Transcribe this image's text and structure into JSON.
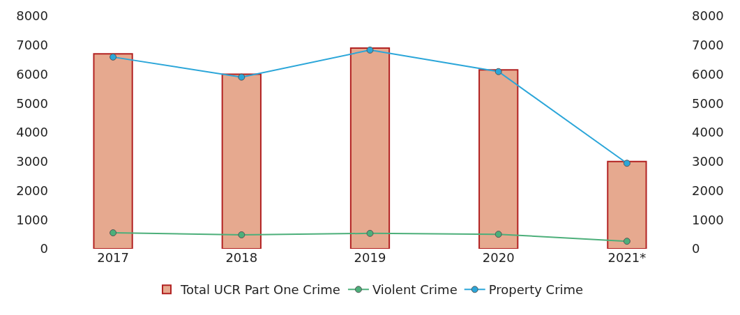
{
  "chart_data": {
    "type": "bar",
    "categories": [
      "2017",
      "2018",
      "2019",
      "2020",
      "2021*"
    ],
    "series": [
      {
        "name": "Total UCR Part One Crime",
        "color": "#e6a98f",
        "values": [
          6700,
          6000,
          6900,
          6150,
          3000
        ]
      },
      {
        "name": "Violent Crime",
        "type": "line",
        "axis": "y2",
        "color": "#4caf7a",
        "values": [
          550,
          480,
          530,
          500,
          260
        ]
      },
      {
        "name": "Property Crime",
        "type": "line",
        "axis": "y2",
        "color": "#2ba6d9",
        "values": [
          6590,
          5900,
          6830,
          6090,
          2940
        ]
      }
    ],
    "ylim": [
      0,
      8000
    ],
    "yticks": [
      0,
      1000,
      2000,
      3000,
      4000,
      5000,
      6000,
      7000,
      8000
    ],
    "y2lim": [
      0,
      8000
    ],
    "y2ticks": [
      0,
      1000,
      2000,
      3000,
      4000,
      5000,
      6000,
      7000,
      8000
    ],
    "marker": "circle",
    "line_style": "solid",
    "legend": "bottom"
  }
}
